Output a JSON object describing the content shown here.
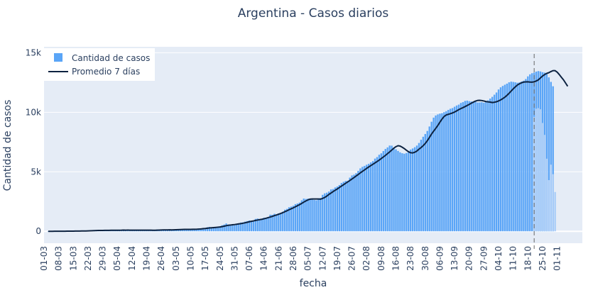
{
  "chart_data": {
    "type": "bar",
    "title": "Argentina - Casos diarios",
    "xlabel": "fecha",
    "ylabel": "Cantidad de casos",
    "ylim": [
      -1000,
      15500
    ],
    "y_ticks": [
      0,
      5000,
      10000,
      15000
    ],
    "y_tick_labels": [
      "0",
      "5k",
      "10k",
      "15k"
    ],
    "x_tick_labels": [
      "01-03",
      "08-03",
      "15-03",
      "22-03",
      "29-03",
      "05-04",
      "12-04",
      "19-04",
      "26-04",
      "03-05",
      "10-05",
      "17-05",
      "24-05",
      "31-05",
      "07-06",
      "14-06",
      "21-06",
      "28-06",
      "05-07",
      "12-07",
      "19-07",
      "26-07",
      "02-08",
      "09-08",
      "16-08",
      "23-08",
      "30-08",
      "06-09",
      "13-09",
      "20-09",
      "27-09",
      "04-10",
      "11-10",
      "18-10",
      "25-10",
      "01-11"
    ],
    "grid": true,
    "legend_position": "top-left",
    "bar_color": "#5aa5f7",
    "bar_faded_color": "#a9cdf8",
    "line_color": "#0c2240",
    "plot_bg": "#e5ecf6",
    "cutoff_label": "21-10",
    "series": [
      {
        "name": "Cantidad de casos",
        "type": "bar",
        "segments": [
          {
            "start": "2020-03-03",
            "values": [
              1,
              0,
              1,
              4,
              3,
              2,
              4,
              2,
              9,
              14,
              11,
              19,
              12,
              31,
              22,
              31,
              15,
              33,
              56,
              61,
              84,
              91,
              55,
              101,
              75,
              86,
              114,
              52,
              76,
              98,
              87,
              102,
              91,
              102,
              77,
              107,
              139,
              93,
              87,
              92,
              92,
              90,
              110,
              79,
              87,
              108,
              85,
              124,
              79,
              73,
              65,
              75,
              154,
              140,
              143,
              92,
              111,
              124,
              113,
              120,
              133,
              164,
              173,
              165,
              165,
              168,
              135,
              170,
              147,
              188,
              160,
              215,
              240,
              239,
              285,
              263,
              341,
              367,
              290,
              352,
              327,
              405,
              414,
              503,
              568,
              657,
              570,
              470,
              494,
              508,
              566,
              670,
              734,
              753,
              812,
              856,
              904,
              838,
              904,
              1041,
              1073,
              965,
              1026,
              1138,
              1146,
              1197,
              1393,
              1386,
              1470,
              1426,
              1500,
              1531,
              1650,
              1813,
              1885,
              2024,
              2079,
              2147,
              2282,
              2338,
              2413,
              2601,
              2749,
              2719,
              2747,
              2744,
              2684,
              2632,
              2604,
              2744,
              2799,
              3062,
              3187,
              3245,
              3339,
              3519,
              3549,
              3683,
              3763,
              3886,
              4059,
              4154,
              4235,
              4251,
              4508,
              4694,
              4760,
              4880,
              5078,
              5287,
              5416,
              5495,
              5592,
              5672,
              5786,
              5899,
              6108,
              6236,
              6432,
              6551,
              6742,
              6917,
              7048,
              7202,
              7194,
              7047,
              6890,
              6749,
              6632,
              6559,
              6519,
              6581,
              6689,
              6867,
              6958,
              7064,
              7203,
              7421,
              7692,
              7943,
              8175,
              8431,
              8804,
              9205,
              9550,
              9731,
              9818,
              9880,
              9923,
              10010,
              10091,
              10200,
              10295,
              10352,
              10464,
              10567,
              10642,
              10782,
              10851,
              10953,
              10979,
              10934,
              10906,
              10912,
              10877,
              10823,
              10826,
              10845,
              10803,
              10869,
              11003,
              11150,
              11296,
              11477,
              11661,
              11913,
              12094,
              12211,
              12312,
              12403,
              12515,
              12572,
              12548,
              12517,
              12480,
              12508,
              12587,
              12652,
              12793,
              13016,
              13184,
              13282,
              13335,
              13418,
              13461,
              13428,
              13366,
              13328,
              13196,
              12933,
              12551,
              12184
            ]
          },
          {
            "start": "2020-10-21",
            "faded": true,
            "values": [
              9613,
              10300,
              10350,
              10250,
              9100,
              8100,
              6100,
              4300,
              5600,
              4800,
              3300
            ]
          }
        ]
      },
      {
        "name": "Promedio 7 días",
        "type": "line",
        "start": "2020-03-03",
        "values": [
          0,
          1,
          1,
          2,
          2,
          3,
          4,
          5,
          7,
          9,
          11,
          13,
          15,
          18,
          21,
          23,
          25,
          27,
          30,
          36,
          44,
          53,
          58,
          65,
          69,
          72,
          76,
          78,
          80,
          82,
          85,
          87,
          86,
          88,
          89,
          92,
          99,
          98,
          99,
          97,
          97,
          95,
          96,
          95,
          94,
          94,
          91,
          94,
          93,
          91,
          88,
          86,
          93,
          102,
          111,
          114,
          118,
          120,
          124,
          118,
          123,
          131,
          139,
          147,
          153,
          159,
          161,
          164,
          164,
          167,
          167,
          175,
          188,
          202,
          220,
          235,
          256,
          280,
          298,
          311,
          326,
          344,
          364,
          393,
          430,
          471,
          507,
          523,
          547,
          567,
          594,
          624,
          648,
          680,
          717,
          756,
          800,
          838,
          872,
          912,
          948,
          978,
          1010,
          1052,
          1097,
          1146,
          1200,
          1253,
          1319,
          1373,
          1435,
          1496,
          1568,
          1647,
          1724,
          1814,
          1893,
          1970,
          2058,
          2152,
          2239,
          2345,
          2451,
          2552,
          2637,
          2703,
          2712,
          2713,
          2717,
          2718,
          2700,
          2766,
          2842,
          2957,
          3095,
          3214,
          3338,
          3450,
          3557,
          3681,
          3797,
          3914,
          4037,
          4150,
          4268,
          4396,
          4514,
          4648,
          4770,
          4906,
          5034,
          5155,
          5284,
          5403,
          5517,
          5631,
          5746,
          5860,
          5982,
          6116,
          6245,
          6378,
          6526,
          6669,
          6826,
          6982,
          7110,
          7189,
          7160,
          7063,
          6947,
          6810,
          6688,
          6599,
          6586,
          6642,
          6742,
          6900,
          7034,
          7194,
          7381,
          7613,
          7887,
          8168,
          8414,
          8646,
          8890,
          9165,
          9427,
          9646,
          9773,
          9826,
          9881,
          9941,
          10021,
          10119,
          10219,
          10311,
          10389,
          10477,
          10567,
          10664,
          10764,
          10857,
          10941,
          10992,
          11001,
          10984,
          10948,
          10897,
          10872,
          10853,
          10815,
          10841,
          10883,
          10952,
          11040,
          11145,
          11267,
          11420,
          11591,
          11780,
          11970,
          12135,
          12293,
          12397,
          12476,
          12539,
          12554,
          12556,
          12533,
          12531,
          12562,
          12629,
          12725,
          12884,
          13047,
          13167,
          13266,
          13325,
          13421,
          13497,
          13495,
          13368,
          13166,
          12938,
          12722,
          12454,
          12184
        ]
      }
    ]
  }
}
